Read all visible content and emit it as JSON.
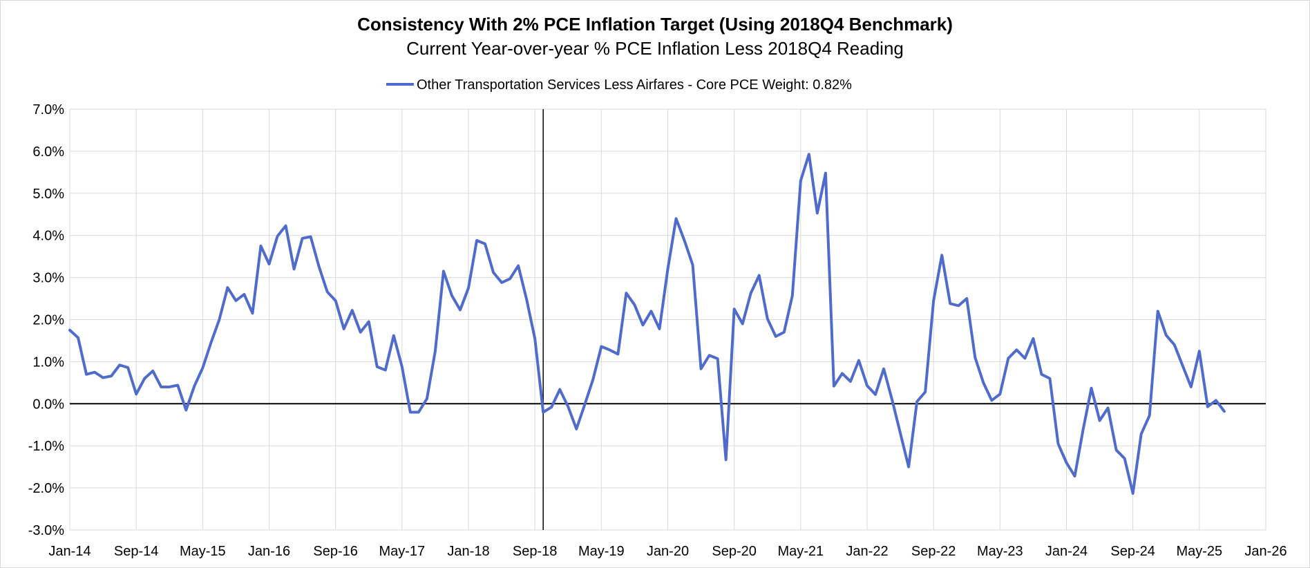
{
  "chart_data": {
    "type": "line",
    "title": "Consistency With 2% PCE Inflation Target (Using 2018Q4 Benchmark)",
    "subtitle": "Current Year-over-year % PCE Inflation Less 2018Q4 Reading",
    "xlabel": "",
    "ylabel": "",
    "ylim": [
      -3,
      7
    ],
    "y_ticks": [
      "7.0%",
      "6.0%",
      "5.0%",
      "4.0%",
      "3.0%",
      "2.0%",
      "1.0%",
      "0.0%",
      "-1.0%",
      "-2.0%",
      "-3.0%"
    ],
    "x_ticks": [
      "Jan-14",
      "Sep-14",
      "May-15",
      "Jan-16",
      "Sep-16",
      "May-17",
      "Jan-18",
      "Sep-18",
      "May-19",
      "Jan-20",
      "Sep-20",
      "May-21",
      "Jan-22",
      "Sep-22",
      "May-23",
      "Jan-24",
      "Sep-24",
      "May-25",
      "Jan-26"
    ],
    "x_range": [
      "Jan-14",
      "Jan-26"
    ],
    "vertical_marker": "Oct-18",
    "grid": true,
    "legend_position": "top",
    "series_color": "#4f6bcc",
    "series": [
      {
        "name": "Other Transportation Services Less Airfares - Core PCE Weight: 0.82%",
        "start": "Jan-14",
        "values": [
          1.75,
          1.57,
          0.7,
          0.75,
          0.62,
          0.66,
          0.92,
          0.86,
          0.23,
          0.6,
          0.78,
          0.4,
          0.4,
          0.44,
          -0.15,
          0.42,
          0.85,
          1.45,
          2.0,
          2.76,
          2.45,
          2.6,
          2.15,
          3.75,
          3.32,
          3.98,
          4.23,
          3.2,
          3.93,
          3.97,
          3.26,
          2.66,
          2.45,
          1.78,
          2.22,
          1.7,
          1.95,
          0.88,
          0.8,
          1.62,
          0.88,
          -0.2,
          -0.2,
          0.12,
          1.25,
          3.15,
          2.57,
          2.23,
          2.75,
          3.88,
          3.8,
          3.12,
          2.88,
          2.97,
          3.28,
          2.48,
          1.55,
          -0.2,
          -0.08,
          0.34,
          -0.07,
          -0.6,
          -0.02,
          0.58,
          1.36,
          1.28,
          1.18,
          2.63,
          2.35,
          1.87,
          2.2,
          1.78,
          3.2,
          4.4,
          3.88,
          3.3,
          0.83,
          1.15,
          1.07,
          -1.33,
          2.25,
          1.9,
          2.63,
          3.05,
          2.02,
          1.6,
          1.7,
          2.57,
          5.3,
          5.93,
          4.53,
          5.48,
          0.42,
          0.72,
          0.53,
          1.03,
          0.43,
          0.22,
          0.83,
          0.1,
          -0.7,
          -1.5,
          0.05,
          0.28,
          2.45,
          3.53,
          2.38,
          2.33,
          2.5,
          1.1,
          0.5,
          0.08,
          0.23,
          1.08,
          1.28,
          1.08,
          1.55,
          0.7,
          0.6,
          -0.95,
          -1.4,
          -1.72,
          -0.62,
          0.37,
          -0.4,
          -0.1,
          -1.1,
          -1.3,
          -2.13,
          -0.72,
          -0.28,
          2.2,
          1.63,
          1.4,
          0.9,
          0.4,
          1.25,
          -0.07,
          0.08,
          -0.18
        ]
      }
    ]
  }
}
